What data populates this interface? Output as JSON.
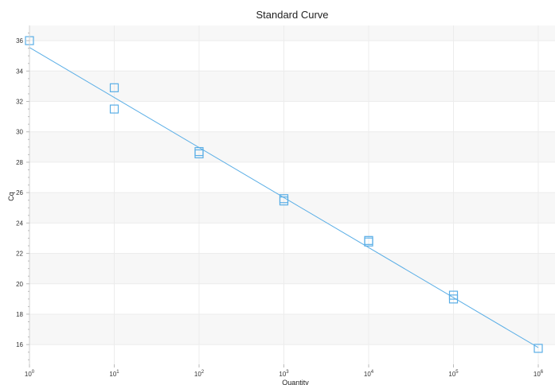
{
  "chart_data": {
    "type": "scatter",
    "title": "Standard Curve",
    "xlabel": "Quantity",
    "ylabel": "Cq",
    "x_scale": "log",
    "xlim": [
      1,
      1000000
    ],
    "ylim": [
      14.7,
      37
    ],
    "y_ticks": [
      16,
      18,
      20,
      22,
      24,
      26,
      28,
      30,
      32,
      34,
      36
    ],
    "x_ticks": [
      {
        "base": "10",
        "exp": "0"
      },
      {
        "base": "10",
        "exp": "1"
      },
      {
        "base": "10",
        "exp": "2"
      },
      {
        "base": "10",
        "exp": "3"
      },
      {
        "base": "10",
        "exp": "4"
      },
      {
        "base": "10",
        "exp": "5"
      },
      {
        "base": "10",
        "exp": "6"
      }
    ],
    "grid": true,
    "points": [
      {
        "x": 1,
        "y": 36.0
      },
      {
        "x": 10,
        "y": 32.9
      },
      {
        "x": 10,
        "y": 31.5
      },
      {
        "x": 100,
        "y": 28.7
      },
      {
        "x": 100,
        "y": 28.55
      },
      {
        "x": 1000,
        "y": 25.6
      },
      {
        "x": 1000,
        "y": 25.45
      },
      {
        "x": 10000,
        "y": 22.85
      },
      {
        "x": 10000,
        "y": 22.75
      },
      {
        "x": 100000,
        "y": 19.25
      },
      {
        "x": 100000,
        "y": 19.0
      },
      {
        "x": 1000000,
        "y": 15.75
      }
    ],
    "fit_line": {
      "x": [
        1,
        1000000
      ],
      "y": [
        35.55,
        15.8
      ]
    },
    "colors": {
      "marker": "#5aaee6",
      "line": "#5aaee6",
      "band": "#f7f7f7",
      "gridline": "#ececec"
    }
  }
}
